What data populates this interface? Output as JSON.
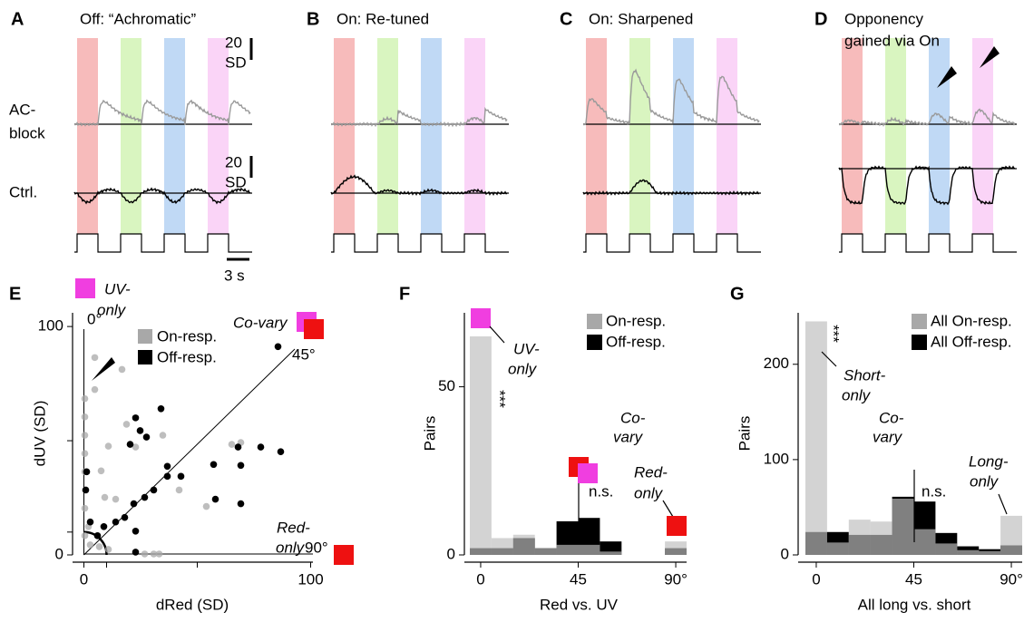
{
  "panels": [
    {
      "letter": "A",
      "title": [
        "Off: “Achromatic”"
      ]
    },
    {
      "letter": "B",
      "title": [
        "On: Re-tuned"
      ]
    },
    {
      "letter": "C",
      "title": [
        "On: Sharpened"
      ]
    },
    {
      "letter": "D",
      "title": [
        "Opponency",
        "gained via On"
      ]
    }
  ],
  "row_labels": {
    "ac_block": [
      "AC-",
      "block"
    ],
    "ctrl": "Ctrl."
  },
  "scale_bars": {
    "amplitude": [
      "20",
      "SD"
    ],
    "time": "3 s"
  },
  "chart_data": [
    {
      "letter": "E",
      "type": "scatter",
      "xlabel": "dRed (SD)",
      "ylabel": "dUV (SD)",
      "xlim": [
        -5,
        101
      ],
      "ylim": [
        0,
        106
      ],
      "xticks": [
        0,
        100
      ],
      "yticks": [
        0,
        100
      ],
      "minor_xticks": [
        10,
        50
      ],
      "minor_yticks": [
        10,
        50
      ],
      "series": [
        {
          "name": "On-resp.",
          "color": "#a8a8a8",
          "x": [
            4.8,
            4.8,
            0.4,
            0.4,
            0.4,
            0.4,
            0.4,
            0.4,
            0.4,
            16.8,
            22.8,
            34.8,
            10.8,
            18.8,
            7.6,
            9.2,
            14,
            42,
            54,
            65.2,
            69.2,
            2.8,
            6.8,
            26.8,
            30.8,
            33.2,
            10.8,
            2
          ],
          "y": [
            86.4,
            72.4,
            68.4,
            60.4,
            52.4,
            44.4,
            36.4,
            20.4,
            8.4,
            81.2,
            47.2,
            52.4,
            47.6,
            57.2,
            36.8,
            25.2,
            24.4,
            28.4,
            21.2,
            48.4,
            49.2,
            4.4,
            3.6,
            0.4,
            0.4,
            0.4,
            2.4,
            12.4
          ]
        },
        {
          "name": "Off-resp.",
          "color": "#000000",
          "x": [
            85.6,
            34,
            22.8,
            24.8,
            27.6,
            20.4,
            68,
            78,
            86.8,
            36.8,
            57.2,
            42.8,
            36.8,
            69.2,
            58,
            69.2,
            30.8,
            26.8,
            22,
            18,
            14,
            8.8,
            22.8,
            0.8,
            1.2,
            2.8,
            6,
            22.8
          ],
          "y": [
            91.2,
            64,
            60,
            54.4,
            51.6,
            48.4,
            47.2,
            47.2,
            45.2,
            38.8,
            39.6,
            34.4,
            34.4,
            39.2,
            24.4,
            22.4,
            28.4,
            25.2,
            22.4,
            16.4,
            14.4,
            12.4,
            10.4,
            28.4,
            36.4,
            14.4,
            8.4,
            1.2
          ]
        }
      ],
      "annotations": {
        "uv_only": [
          "UV-",
          "only"
        ],
        "angle_0": "0°",
        "co_vary": "Co-vary",
        "angle_45": "45°",
        "red_only": [
          "Red-",
          "only"
        ],
        "angle_90": "90°"
      }
    },
    {
      "letter": "F",
      "type": "histogram",
      "xlabel": "Red vs. UV",
      "ylabel": "Pairs",
      "bins": [
        -5,
        5,
        15,
        25,
        35,
        45,
        55,
        65,
        75,
        85,
        95
      ],
      "xlim": [
        -5,
        95
      ],
      "ylim": [
        0,
        72
      ],
      "xticks": [
        0,
        45,
        {
          "value": 90,
          "label": "90°"
        }
      ],
      "yticks": [
        0,
        50
      ],
      "series": [
        {
          "name": "Off-resp.",
          "color": "#000000",
          "opacity": 1,
          "values": [
            2,
            2,
            5,
            2,
            10,
            11,
            4,
            0,
            0,
            2
          ]
        },
        {
          "name": "On-resp.",
          "color": "#bebebe",
          "opacity": 0.675,
          "values": [
            65,
            5,
            6,
            2,
            3,
            3,
            1,
            0,
            0,
            4
          ]
        }
      ],
      "annotations": {
        "uv_only": [
          "UV-",
          "only"
        ],
        "stars": "***",
        "co_vary": [
          "Co-",
          "vary"
        ],
        "ns": "n.s.",
        "red_only": [
          "Red-",
          "only"
        ]
      }
    },
    {
      "letter": "G",
      "type": "histogram",
      "xlabel": "All long vs. short",
      "ylabel": "Pairs",
      "bins": [
        -5,
        5,
        15,
        25,
        35,
        45,
        55,
        65,
        75,
        85,
        95
      ],
      "xlim": [
        -5,
        95
      ],
      "ylim": [
        0,
        254
      ],
      "xticks": [
        0,
        45,
        {
          "value": 90,
          "label": "90°"
        }
      ],
      "yticks": [
        0,
        100,
        200
      ],
      "series": [
        {
          "name": "All Off-resp.",
          "color": "#000000",
          "opacity": 1,
          "values": [
            24,
            24,
            21,
            21,
            61,
            56,
            23,
            9,
            6,
            10
          ]
        },
        {
          "name": "All On-resp.",
          "color": "#bebebe",
          "opacity": 0.675,
          "values": [
            245,
            13,
            37,
            35,
            59,
            27,
            12,
            5,
            4,
            41
          ]
        }
      ],
      "annotations": {
        "stars": "***",
        "short_only": [
          "Short-",
          "only"
        ],
        "co_vary": [
          "Co-",
          "vary"
        ],
        "ns": "n.s.",
        "long_only": [
          "Long-",
          "only"
        ]
      }
    }
  ]
}
